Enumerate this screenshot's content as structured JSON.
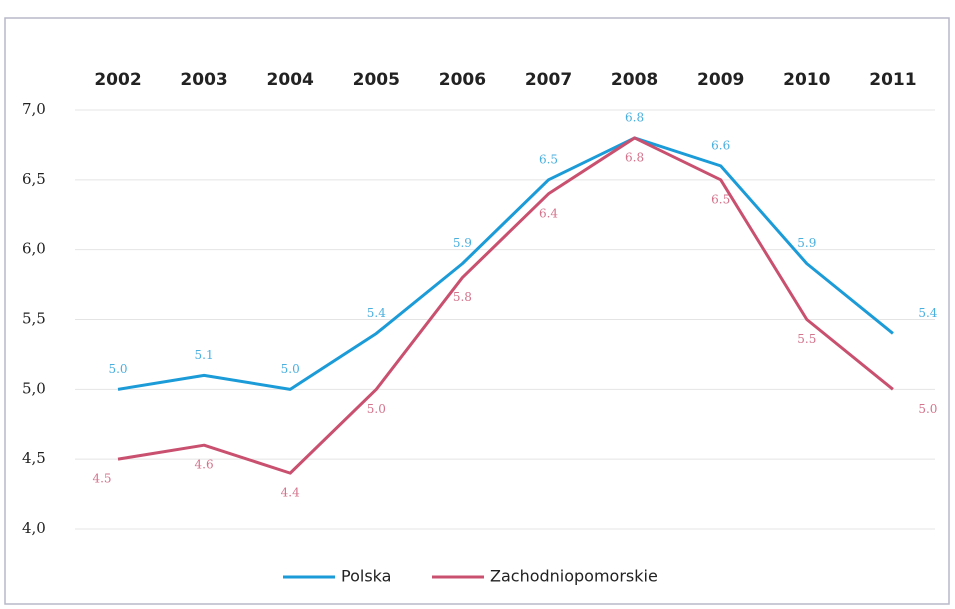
{
  "chart_data": {
    "type": "line",
    "categories": [
      "2002",
      "2003",
      "2004",
      "2005",
      "2006",
      "2007",
      "2008",
      "2009",
      "2010",
      "2011"
    ],
    "series": [
      {
        "name": "Polska",
        "color": "#1b9bd7",
        "values": [
          5.0,
          5.1,
          5.0,
          5.4,
          5.9,
          6.5,
          6.8,
          6.6,
          5.9,
          5.4
        ],
        "value_labels": [
          "5.0",
          "5.1",
          "5.0",
          "5.4",
          "5.9",
          "6.5",
          "6.8",
          "6.6",
          "5.9",
          "5.4"
        ]
      },
      {
        "name": "Zachodniopomorskie",
        "color": "#c9506f",
        "values": [
          4.5,
          4.6,
          4.4,
          5.0,
          5.8,
          6.4,
          6.8,
          6.5,
          5.5,
          5.0
        ],
        "value_labels": [
          "4.5",
          "4.6",
          "4.4",
          "5.0",
          "5.8",
          "6.4",
          "6.8",
          "6.5",
          "5.5",
          "5.0"
        ]
      }
    ],
    "ylim": [
      4,
      7
    ],
    "yticks": [
      {
        "value": 4,
        "label": "4,0"
      },
      {
        "value": 4.5,
        "label": "4,5"
      },
      {
        "value": 5,
        "label": "5,0"
      },
      {
        "value": 5.5,
        "label": "5,5"
      },
      {
        "value": 6,
        "label": "6,0"
      },
      {
        "value": 6.5,
        "label": "6,5"
      },
      {
        "value": 7,
        "label": "7,0"
      }
    ],
    "grid": true,
    "legend": "bottom"
  }
}
